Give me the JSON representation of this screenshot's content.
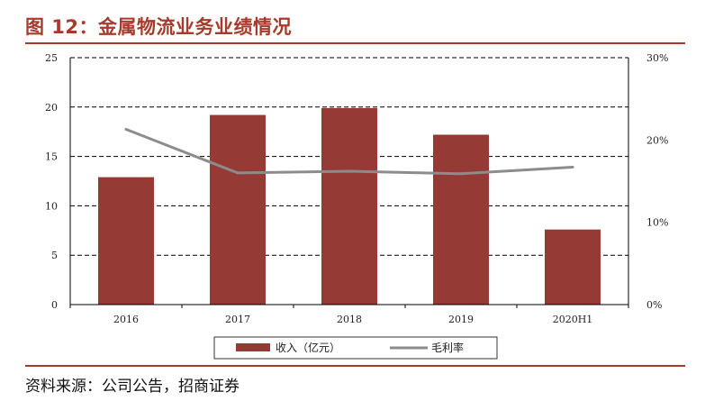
{
  "header": {
    "title": "图 12：金属物流业务业绩情况"
  },
  "footer": {
    "source": "资料来源：公司公告，招商证券"
  },
  "colors": {
    "title": "#a73a2c",
    "bar": "#963a35",
    "line": "#8c8c8c"
  },
  "chart_data": {
    "type": "bar",
    "categories": [
      "2016",
      "2017",
      "2018",
      "2019",
      "2020H1"
    ],
    "series": [
      {
        "name": "收入（亿元）",
        "type": "bar",
        "axis": "left",
        "values": [
          12.9,
          19.2,
          19.9,
          17.2,
          7.6
        ]
      },
      {
        "name": "毛利率",
        "type": "line",
        "axis": "right",
        "values": [
          0.213,
          0.16,
          0.162,
          0.159,
          0.167
        ]
      }
    ],
    "y_left": {
      "ylim": [
        0,
        25
      ],
      "ticks": [
        "0",
        "5",
        "10",
        "15",
        "20",
        "25"
      ]
    },
    "y_right": {
      "ylim": [
        0,
        0.3
      ],
      "ticks": [
        "0%",
        "10%",
        "20%",
        "30%"
      ]
    },
    "grid": true,
    "legend_position": "bottom"
  }
}
